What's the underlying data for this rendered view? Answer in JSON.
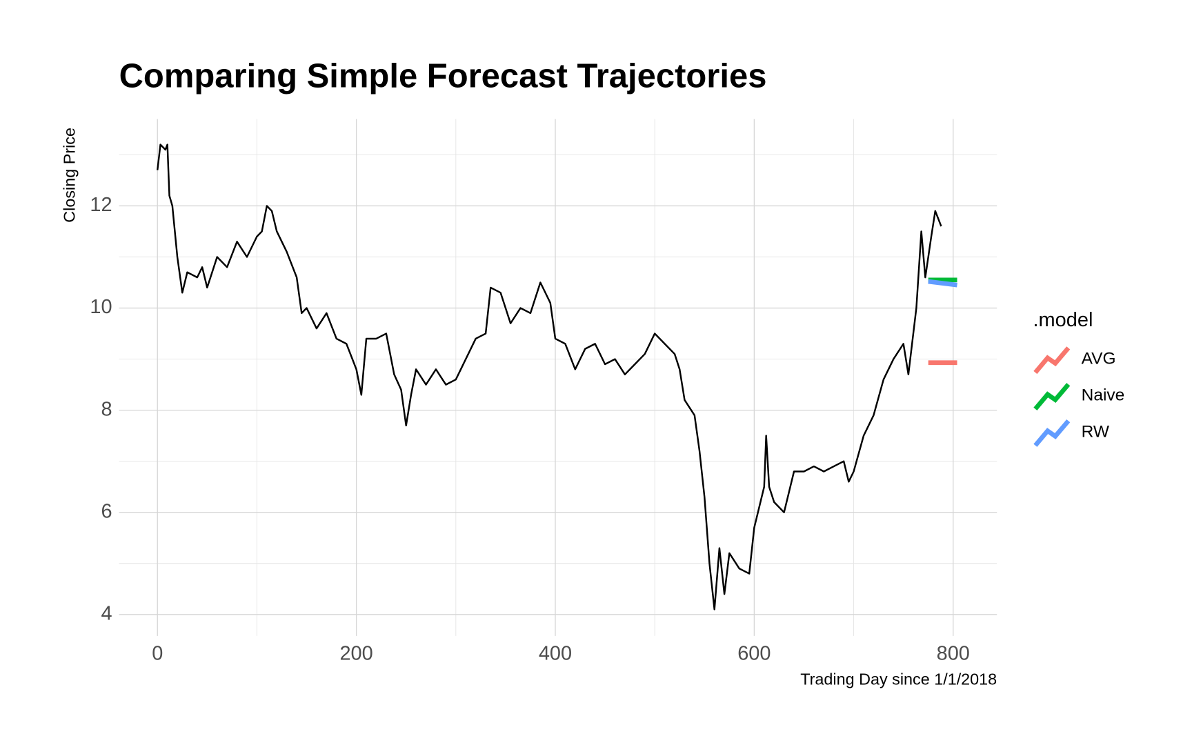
{
  "chart_data": {
    "type": "line",
    "title": "Comparing Simple Forecast Trajectories",
    "x_label": "Trading Day since 1/1/2018",
    "y_label": "Closing Price",
    "color": "#000000",
    "x": [
      0,
      3,
      8,
      10,
      12,
      15,
      20,
      25,
      30,
      40,
      45,
      50,
      60,
      70,
      80,
      90,
      100,
      105,
      110,
      115,
      120,
      130,
      140,
      145,
      150,
      160,
      170,
      180,
      190,
      200,
      205,
      210,
      220,
      230,
      238,
      245,
      250,
      255,
      260,
      270,
      280,
      290,
      300,
      310,
      320,
      330,
      335,
      345,
      355,
      365,
      375,
      385,
      395,
      400,
      410,
      420,
      430,
      440,
      450,
      460,
      470,
      480,
      490,
      500,
      510,
      520,
      525,
      530,
      540,
      545,
      550,
      555,
      560,
      565,
      570,
      575,
      585,
      595,
      600,
      610,
      612,
      615,
      620,
      630,
      640,
      650,
      660,
      670,
      680,
      690,
      695,
      700,
      710,
      720,
      730,
      740,
      750,
      755,
      763,
      768,
      772,
      778,
      782,
      788
    ],
    "values": [
      12.7,
      13.2,
      13.1,
      13.2,
      12.2,
      12.0,
      11.0,
      10.3,
      10.7,
      10.6,
      10.8,
      10.4,
      11.0,
      10.8,
      11.3,
      11.0,
      11.4,
      11.5,
      12.0,
      11.9,
      11.5,
      11.1,
      10.6,
      9.9,
      10.0,
      9.6,
      9.9,
      9.4,
      9.3,
      8.8,
      8.3,
      9.4,
      9.4,
      9.5,
      8.7,
      8.4,
      7.7,
      8.3,
      8.8,
      8.5,
      8.8,
      8.5,
      8.6,
      9.0,
      9.4,
      9.5,
      10.4,
      10.3,
      9.7,
      10.0,
      9.9,
      10.5,
      10.1,
      9.4,
      9.3,
      8.8,
      9.2,
      9.3,
      8.9,
      9.0,
      8.7,
      8.9,
      9.1,
      9.5,
      9.3,
      9.1,
      8.8,
      8.2,
      7.9,
      7.2,
      6.3,
      5.0,
      4.1,
      5.3,
      4.4,
      5.2,
      4.9,
      4.8,
      5.7,
      6.5,
      7.5,
      6.5,
      6.2,
      6.0,
      6.8,
      6.8,
      6.9,
      6.8,
      6.9,
      7.0,
      6.6,
      6.8,
      7.5,
      7.9,
      8.6,
      9.0,
      9.3,
      8.7,
      10.0,
      11.5,
      10.6,
      11.4,
      11.9,
      11.6
    ],
    "legend_title": ".model",
    "series": [
      {
        "name": "AVG",
        "color": "#f8766d",
        "x": [
          775,
          804
        ],
        "values": [
          8.93,
          8.93
        ]
      },
      {
        "name": "Naive",
        "color": "#00ba38",
        "x": [
          775,
          804
        ],
        "values": [
          10.55,
          10.55
        ]
      },
      {
        "name": "RW",
        "color": "#619cff",
        "x": [
          775,
          804
        ],
        "values": [
          10.52,
          10.45
        ]
      }
    ],
    "xlim": [
      -38.6,
      844
    ],
    "ylim": [
      3.58,
      13.7
    ],
    "xticks": [
      0,
      200,
      400,
      600,
      800
    ],
    "yticks": [
      4,
      6,
      8,
      10,
      12
    ],
    "minor_xticks": [
      100,
      300,
      500,
      700
    ],
    "minor_yticks": [
      5,
      7,
      9,
      11,
      13
    ],
    "grid": true
  }
}
